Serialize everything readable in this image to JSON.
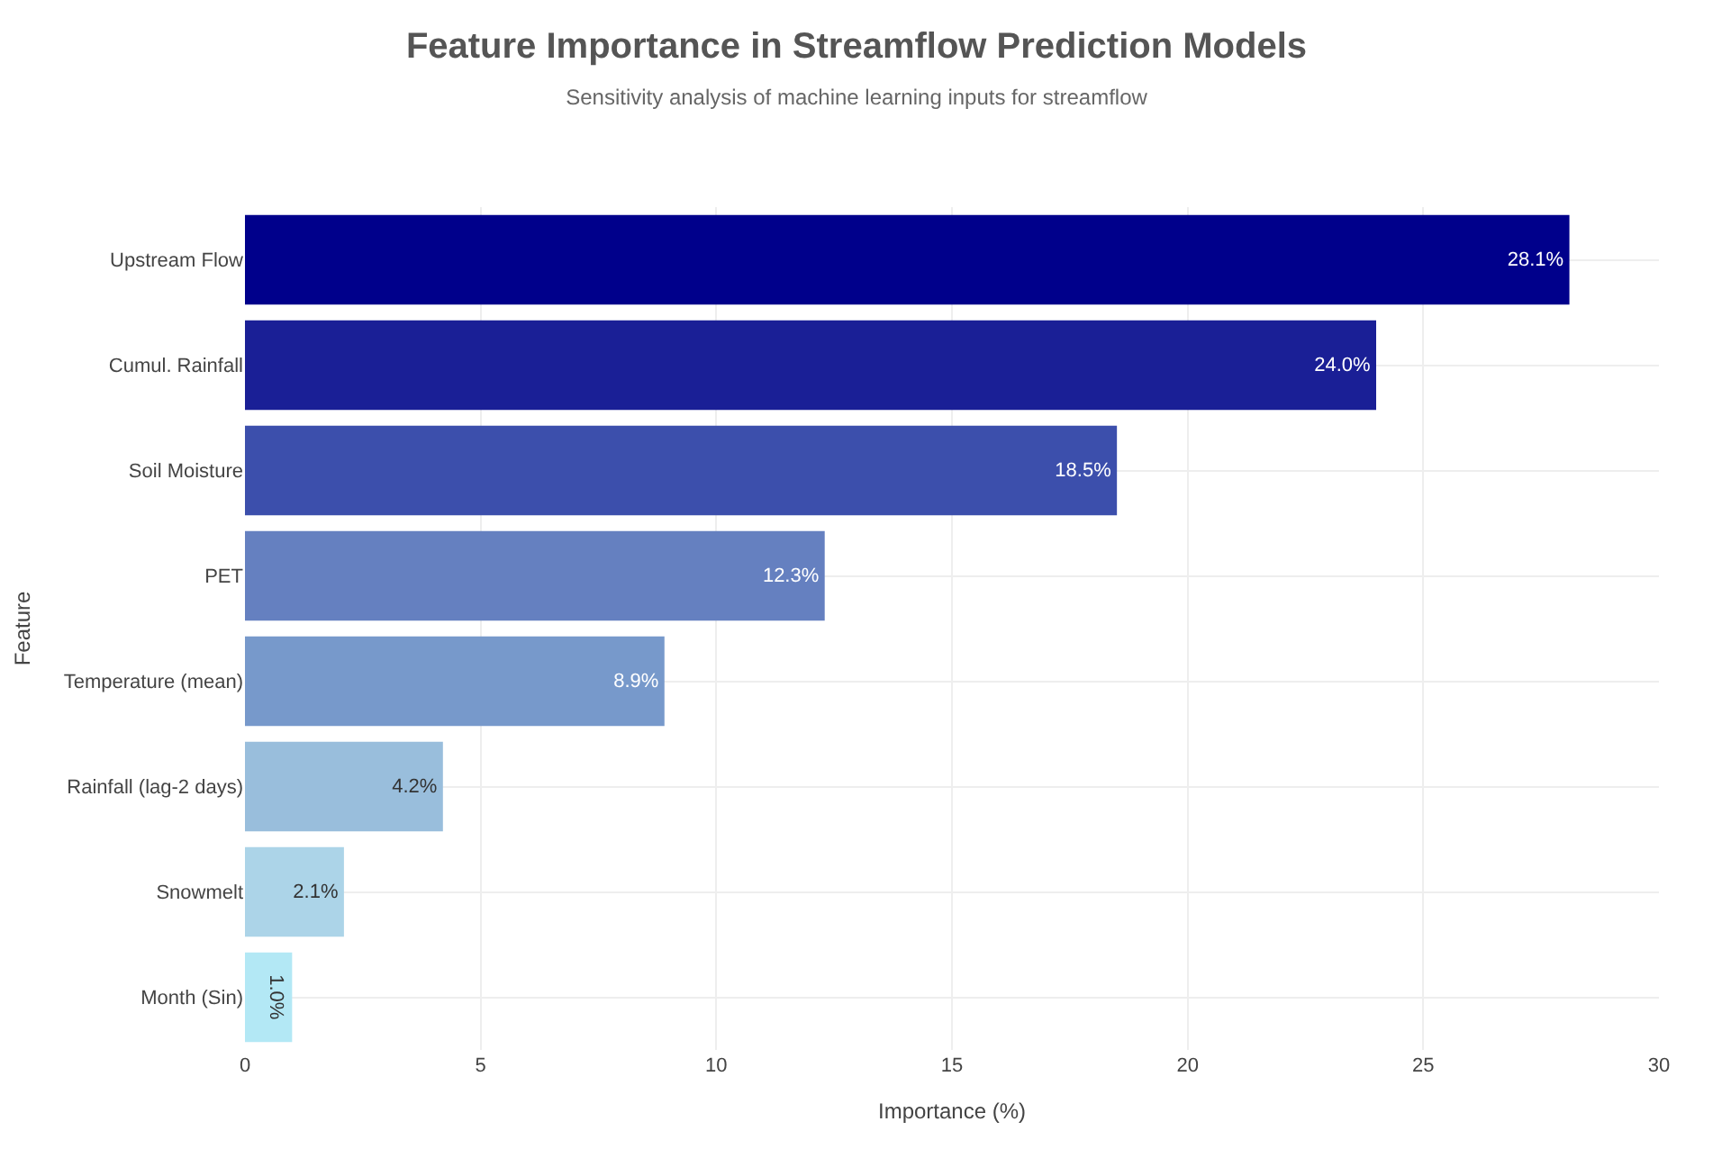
{
  "chart_data": {
    "type": "bar",
    "orientation": "horizontal",
    "title": "Feature Importance in Streamflow Prediction Models",
    "subtitle": "Sensitivity analysis of machine learning inputs for streamflow",
    "xlabel": "Importance (%)",
    "ylabel": "Feature",
    "categories": [
      "Upstream Flow",
      "Cumul. Rainfall",
      "Soil Moisture",
      "PET",
      "Temperature (mean)",
      "Rainfall (lag-2 days)",
      "Snowmelt",
      "Month (Sin)"
    ],
    "values": [
      28.1,
      24.0,
      18.5,
      12.3,
      8.9,
      4.2,
      2.1,
      1.0
    ],
    "colors": [
      "#00008b",
      "#1a1f96",
      "#3c4fac",
      "#6580c0",
      "#7799cb",
      "#99bedc",
      "#acd4e8",
      "#b3e8f5"
    ],
    "value_labels": [
      "28.1%",
      "24.0%",
      "18.5%",
      "12.3%",
      "8.9%",
      "4.2%",
      "2.1%",
      "1.0%"
    ],
    "xlim": [
      0,
      30
    ],
    "xticks": [
      0,
      5,
      10,
      15,
      20,
      25,
      30
    ],
    "grid": true
  }
}
